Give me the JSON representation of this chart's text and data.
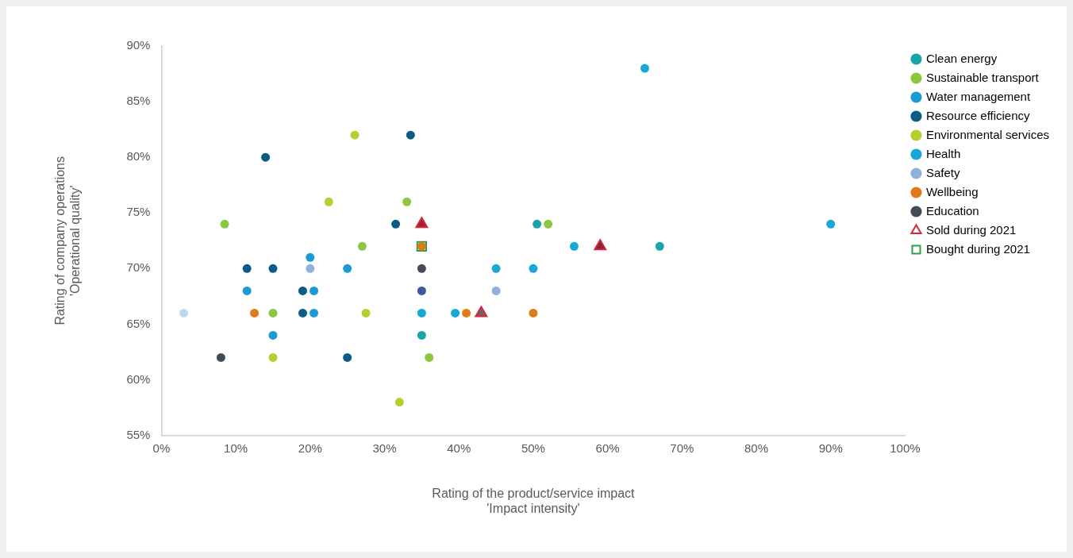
{
  "chart_data": {
    "type": "scatter",
    "xlabel": "Rating of the product/service impact\n'Impact intensity'",
    "ylabel": "Rating of company operations\n'Operational quality'",
    "xlim": [
      0,
      100
    ],
    "xticks": [
      {
        "value": 0,
        "label": "0%"
      },
      {
        "value": 10,
        "label": "10%"
      },
      {
        "value": 20,
        "label": "20%"
      },
      {
        "value": 30,
        "label": "30%"
      },
      {
        "value": 40,
        "label": "40%"
      },
      {
        "value": 50,
        "label": "50%"
      },
      {
        "value": 60,
        "label": "60%"
      },
      {
        "value": 70,
        "label": "70%"
      },
      {
        "value": 80,
        "label": "80%"
      },
      {
        "value": 90,
        "label": "90%"
      },
      {
        "value": 100,
        "label": "100%"
      }
    ],
    "ylim": [
      55,
      90
    ],
    "yticks": [
      {
        "value": 55,
        "label": "55%"
      },
      {
        "value": 60,
        "label": "60%"
      },
      {
        "value": 65,
        "label": "65%"
      },
      {
        "value": 70,
        "label": "70%"
      },
      {
        "value": 75,
        "label": "75%"
      },
      {
        "value": 80,
        "label": "80%"
      },
      {
        "value": 85,
        "label": "85%"
      },
      {
        "value": 90,
        "label": "90%"
      }
    ],
    "grid": false,
    "legend": "top right",
    "marker": "circle",
    "series": [
      {
        "name": "Clean energy",
        "color": "#1aa3a8",
        "x": [
          50.5,
          67,
          35
        ],
        "values": [
          74,
          72,
          64
        ]
      },
      {
        "name": "Sustainable transport",
        "color": "#8dc63f",
        "x": [
          8.5,
          33,
          27,
          52,
          15,
          36
        ],
        "values": [
          74,
          76,
          72,
          74,
          66,
          62
        ]
      },
      {
        "name": "Water management",
        "color": "#1b9ad6",
        "x": [
          20,
          11.5,
          20.5,
          20.5,
          15,
          25
        ],
        "values": [
          71,
          68,
          68,
          66,
          64,
          70
        ]
      },
      {
        "name": "Resource efficiency",
        "color": "#0d5c86",
        "x": [
          11.5,
          15,
          19,
          19,
          25,
          33.5,
          14,
          31.5
        ],
        "values": [
          70,
          70,
          68,
          66,
          62,
          82,
          80,
          74
        ]
      },
      {
        "name": "Environmental services",
        "color": "#b5cf2e",
        "x": [
          26,
          22.5,
          27.5,
          15,
          32
        ],
        "values": [
          82,
          76,
          66,
          62,
          58
        ]
      },
      {
        "name": "Health",
        "color": "#18a8d8",
        "x": [
          65,
          90,
          55.5,
          35,
          45,
          50,
          39.5
        ],
        "values": [
          88,
          74,
          72,
          66,
          70,
          70,
          66
        ]
      },
      {
        "name": "Safety",
        "color": "#8fb2da",
        "colors": [
          "#8fb2da",
          "#8fb2da",
          "#bcdcee",
          "#3e57a0"
        ],
        "x": [
          20,
          45,
          3,
          35
        ],
        "values": [
          70,
          68,
          66,
          68
        ]
      },
      {
        "name": "Wellbeing",
        "color": "#e07b1a",
        "x": [
          12.5,
          41,
          50,
          35
        ],
        "values": [
          66,
          66,
          66,
          72
        ]
      },
      {
        "name": "Education",
        "color": "#444d57",
        "x": [
          35,
          8
        ],
        "values": [
          70,
          62
        ]
      },
      {
        "name": "Sold during 2021",
        "color": "#d7263d",
        "colors": [
          "#9b2335",
          "#7a2a3a",
          "#6e6470"
        ],
        "marker": "triangle",
        "x": [
          35,
          59,
          43
        ],
        "values": [
          74,
          72,
          66
        ]
      },
      {
        "name": "Bought during 2021",
        "color": "#2e9e4f",
        "marker": "square",
        "x": [
          35
        ],
        "values": [
          72
        ]
      }
    ]
  }
}
